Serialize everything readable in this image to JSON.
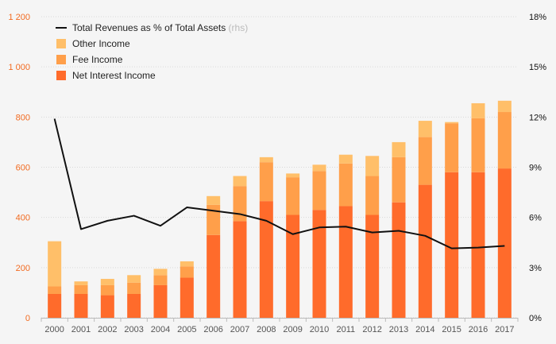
{
  "chart_data": {
    "type": "bar",
    "stacked": true,
    "categories": [
      "2000",
      "2001",
      "2002",
      "2003",
      "2004",
      "2005",
      "2006",
      "2007",
      "2008",
      "2009",
      "2010",
      "2011",
      "2012",
      "2013",
      "2014",
      "2015",
      "2016",
      "2017"
    ],
    "series": [
      {
        "name": "Net Interest Income",
        "kind": "bar",
        "axis": "left",
        "color": "#ff6b2b",
        "values": [
          95,
          95,
          90,
          95,
          130,
          160,
          330,
          385,
          465,
          410,
          430,
          445,
          410,
          460,
          530,
          580,
          580,
          595
        ]
      },
      {
        "name": "Fee Income",
        "kind": "bar",
        "axis": "left",
        "color": "#ff9f4a",
        "values": [
          30,
          35,
          40,
          45,
          40,
          45,
          120,
          140,
          155,
          150,
          155,
          170,
          155,
          180,
          190,
          195,
          215,
          225
        ]
      },
      {
        "name": "Other Income",
        "kind": "bar",
        "axis": "left",
        "color": "#ffbf69",
        "values": [
          180,
          15,
          25,
          30,
          25,
          20,
          35,
          40,
          20,
          15,
          25,
          35,
          80,
          60,
          65,
          5,
          60,
          45
        ]
      },
      {
        "name": "Total Revenues as % of Total Assets",
        "kind": "line",
        "axis": "right",
        "color": "#111111",
        "values": [
          11.9,
          5.3,
          5.8,
          6.1,
          5.5,
          6.6,
          6.4,
          6.2,
          5.8,
          5.0,
          5.4,
          5.45,
          5.1,
          5.2,
          4.9,
          4.15,
          4.2,
          4.3
        ]
      }
    ],
    "legend": {
      "position": "top-left",
      "items": [
        {
          "label": "Total Revenues as % of Total Assets",
          "suffix": "(rhs)",
          "marker": "line",
          "color": "#111111"
        },
        {
          "label": "Other Income",
          "marker": "square",
          "color": "#ffbf69"
        },
        {
          "label": "Fee Income",
          "marker": "square",
          "color": "#ff9f4a"
        },
        {
          "label": "Net Interest Income",
          "marker": "square",
          "color": "#ff6b2b"
        }
      ]
    },
    "y_left": {
      "ylim": [
        0,
        1200
      ],
      "ticks": [
        0,
        200,
        400,
        600,
        800,
        1000,
        1200
      ],
      "tick_labels": [
        "0",
        "200",
        "400",
        "600",
        "800",
        "1 000",
        "1 200"
      ],
      "color": "#f26b21"
    },
    "y_right": {
      "ylim": [
        0,
        18
      ],
      "ticks": [
        0,
        3,
        6,
        9,
        12,
        15,
        18
      ],
      "tick_labels": [
        "0%",
        "3%",
        "6%",
        "9%",
        "12%",
        "15%",
        "18%"
      ],
      "color": "#111111"
    },
    "grid": true,
    "xlabel": "",
    "ylabel": "",
    "title": ""
  }
}
